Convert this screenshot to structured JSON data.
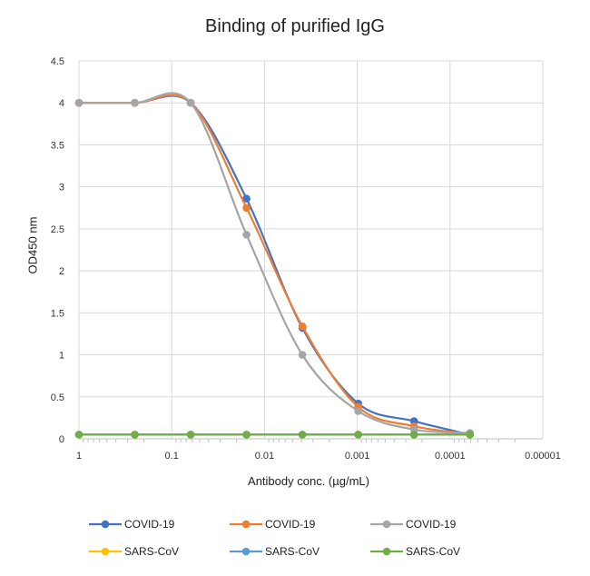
{
  "chart_data": {
    "type": "line",
    "title": "Binding of purified IgG",
    "xlabel": "Antibody conc. (µg/mL)",
    "ylabel": "OD450 nm",
    "x_scale": "log_reversed",
    "xlim": [
      1,
      1e-05
    ],
    "ylim": [
      0,
      4.5
    ],
    "x_ticks": [
      1,
      0.1,
      0.01,
      0.001,
      0.0001,
      1e-05
    ],
    "x_tick_labels": [
      "1",
      "0.1",
      "0.01",
      "0.001",
      "0.0001",
      "0.00001"
    ],
    "y_ticks": [
      0,
      0.5,
      1,
      1.5,
      2,
      2.5,
      3,
      3.5,
      4,
      4.5
    ],
    "y_tick_labels": [
      "0",
      "0.5",
      "1",
      "1.5",
      "2",
      "2.5",
      "3",
      "3.5",
      "4",
      "4.5"
    ],
    "x": [
      1,
      0.25,
      0.0625,
      0.015625,
      0.00390625,
      0.0009765625,
      0.000244140625,
      6.103515625e-05
    ],
    "series": [
      {
        "name": "COVID-19",
        "color": "#4472C4",
        "values": [
          4.0,
          4.0,
          4.0,
          2.86,
          1.32,
          0.42,
          0.21,
          0.05
        ]
      },
      {
        "name": "COVID-19",
        "color": "#ED7D31",
        "values": [
          4.0,
          4.0,
          4.0,
          2.75,
          1.34,
          0.38,
          0.15,
          0.06
        ]
      },
      {
        "name": "COVID-19",
        "color": "#A5A5A5",
        "values": [
          4.0,
          4.0,
          4.0,
          2.43,
          1.0,
          0.33,
          0.11,
          0.07
        ]
      },
      {
        "name": "SARS-CoV",
        "color": "#FFC000",
        "values": [
          0.05,
          0.05,
          0.05,
          0.05,
          0.05,
          0.05,
          0.05,
          0.05
        ]
      },
      {
        "name": "SARS-CoV",
        "color": "#5B9BD5",
        "values": [
          0.05,
          0.05,
          0.05,
          0.05,
          0.05,
          0.05,
          0.05,
          0.05
        ]
      },
      {
        "name": "SARS-CoV",
        "color": "#70AD47",
        "values": [
          0.05,
          0.05,
          0.05,
          0.05,
          0.05,
          0.05,
          0.05,
          0.05
        ]
      }
    ],
    "grid": true,
    "legend_position": "bottom"
  }
}
